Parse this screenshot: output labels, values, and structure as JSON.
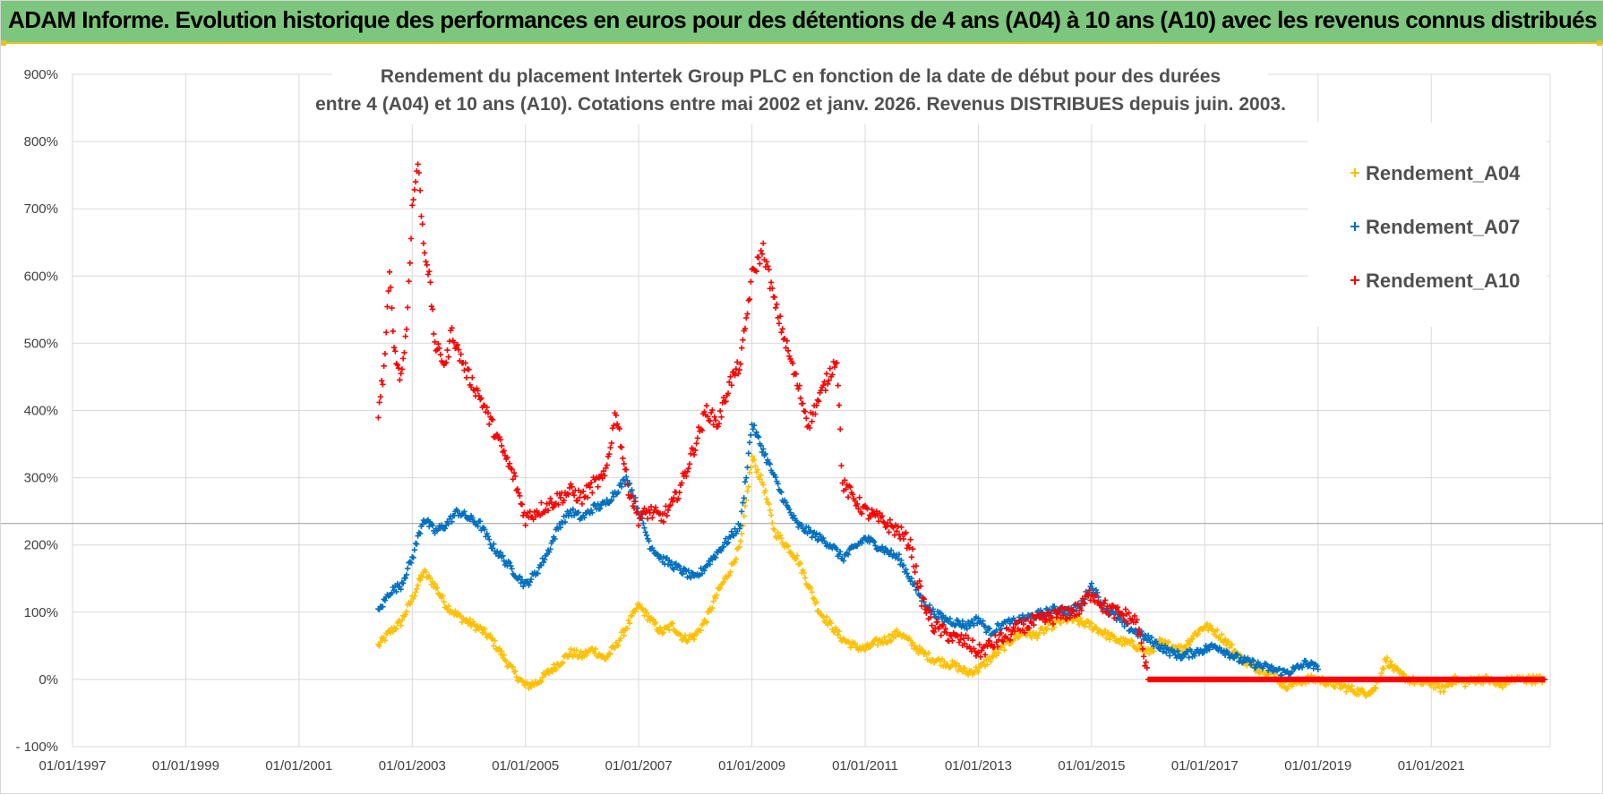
{
  "header": {
    "banner_title": "ADAM Informe. Evolution historique des performances en euros pour des détentions de 4 ans (A04) à 10 ans (A10) avec les revenus connus distribués"
  },
  "colors": {
    "banner_bg": "#7dc67d",
    "accent": "#e6c21a",
    "A04": "#ffc000",
    "A07": "#0070c0",
    "A10": "#ff0000",
    "grid": "#d9d9d9"
  },
  "chart_data": {
    "type": "scatter",
    "title_lines": [
      "Rendement du placement Intertek Group PLC en fonction de la date de début pour des durées",
      "entre 4 (A04) et 10 ans (A10).  Cotations entre mai 2002 et janv. 2026. Revenus DISTRIBUES depuis juin. 2003."
    ],
    "y_ticks": [
      "900%",
      "800%",
      "700%",
      "600%",
      "500%",
      "400%",
      "300%",
      "200%",
      "100%",
      "0%",
      "- 100%"
    ],
    "y_tick_values": [
      900,
      800,
      700,
      600,
      500,
      400,
      300,
      200,
      100,
      0,
      -100
    ],
    "x_ticks": [
      "01/01/1997",
      "01/01/1999",
      "01/01/2001",
      "01/01/2003",
      "01/01/2005",
      "01/01/2007",
      "01/01/2009",
      "01/01/2011",
      "01/01/2013",
      "01/01/2015",
      "01/01/2017",
      "01/01/2019",
      "01/01/2021"
    ],
    "x_tick_years": [
      1997,
      1999,
      2001,
      2003,
      2005,
      2007,
      2009,
      2011,
      2013,
      2015,
      2017,
      2019,
      2021
    ],
    "xlim": [
      1997,
      2023.1
    ],
    "ylim": [
      -100,
      900
    ],
    "reference_line_y": 232,
    "series": [
      {
        "name": "Rendement_A04",
        "color": "#ffc000",
        "points": [
          [
            2002.4,
            50
          ],
          [
            2002.6,
            70
          ],
          [
            2002.8,
            85
          ],
          [
            2003.0,
            120
          ],
          [
            2003.2,
            160
          ],
          [
            2003.4,
            140
          ],
          [
            2003.6,
            110
          ],
          [
            2003.8,
            95
          ],
          [
            2004.0,
            85
          ],
          [
            2004.2,
            75
          ],
          [
            2004.4,
            60
          ],
          [
            2004.6,
            35
          ],
          [
            2004.8,
            10
          ],
          [
            2005.0,
            -10
          ],
          [
            2005.2,
            -5
          ],
          [
            2005.4,
            10
          ],
          [
            2005.6,
            25
          ],
          [
            2005.8,
            40
          ],
          [
            2006.0,
            35
          ],
          [
            2006.2,
            45
          ],
          [
            2006.4,
            30
          ],
          [
            2006.6,
            50
          ],
          [
            2006.8,
            80
          ],
          [
            2007.0,
            110
          ],
          [
            2007.2,
            90
          ],
          [
            2007.4,
            70
          ],
          [
            2007.6,
            80
          ],
          [
            2007.8,
            60
          ],
          [
            2008.0,
            65
          ],
          [
            2008.2,
            90
          ],
          [
            2008.4,
            130
          ],
          [
            2008.6,
            160
          ],
          [
            2008.8,
            200
          ],
          [
            2009.0,
            330
          ],
          [
            2009.2,
            290
          ],
          [
            2009.4,
            220
          ],
          [
            2009.6,
            200
          ],
          [
            2009.8,
            180
          ],
          [
            2010.0,
            140
          ],
          [
            2010.2,
            100
          ],
          [
            2010.4,
            80
          ],
          [
            2010.6,
            60
          ],
          [
            2010.8,
            50
          ],
          [
            2011.0,
            45
          ],
          [
            2011.2,
            55
          ],
          [
            2011.4,
            60
          ],
          [
            2011.6,
            70
          ],
          [
            2011.8,
            55
          ],
          [
            2012.0,
            40
          ],
          [
            2012.2,
            30
          ],
          [
            2012.4,
            25
          ],
          [
            2012.6,
            20
          ],
          [
            2012.8,
            10
          ],
          [
            2013.0,
            15
          ],
          [
            2013.2,
            30
          ],
          [
            2013.4,
            45
          ],
          [
            2013.6,
            60
          ],
          [
            2013.8,
            70
          ],
          [
            2014.0,
            65
          ],
          [
            2014.2,
            75
          ],
          [
            2014.4,
            85
          ],
          [
            2014.6,
            90
          ],
          [
            2014.8,
            85
          ],
          [
            2015.0,
            80
          ],
          [
            2015.2,
            70
          ],
          [
            2015.4,
            60
          ],
          [
            2015.6,
            55
          ],
          [
            2015.8,
            50
          ],
          [
            2016.0,
            40
          ],
          [
            2016.2,
            55
          ],
          [
            2016.4,
            50
          ],
          [
            2016.6,
            45
          ],
          [
            2016.8,
            65
          ],
          [
            2017.0,
            80
          ],
          [
            2017.2,
            70
          ],
          [
            2017.4,
            55
          ],
          [
            2017.6,
            35
          ],
          [
            2017.8,
            20
          ],
          [
            2018.0,
            15
          ],
          [
            2018.2,
            10
          ],
          [
            2018.4,
            -10
          ],
          [
            2018.6,
            -5
          ],
          [
            2018.8,
            0
          ],
          [
            2019.0,
            0
          ],
          [
            2019.2,
            -5
          ],
          [
            2019.4,
            -10
          ],
          [
            2019.6,
            -15
          ],
          [
            2019.8,
            -20
          ],
          [
            2020.0,
            -15
          ],
          [
            2020.2,
            30
          ],
          [
            2020.4,
            10
          ],
          [
            2020.6,
            0
          ],
          [
            2020.8,
            -5
          ],
          [
            2021.0,
            -5
          ],
          [
            2021.2,
            -15
          ],
          [
            2021.4,
            0
          ],
          [
            2021.6,
            -5
          ],
          [
            2021.8,
            0
          ],
          [
            2022.0,
            0
          ],
          [
            2022.2,
            -10
          ],
          [
            2022.4,
            0
          ],
          [
            2022.6,
            0
          ],
          [
            2022.8,
            0
          ],
          [
            2023.0,
            0
          ]
        ]
      },
      {
        "name": "Rendement_A07",
        "color": "#0070c0",
        "points": [
          [
            2002.4,
            100
          ],
          [
            2002.6,
            130
          ],
          [
            2002.8,
            140
          ],
          [
            2003.0,
            180
          ],
          [
            2003.2,
            240
          ],
          [
            2003.4,
            220
          ],
          [
            2003.6,
            230
          ],
          [
            2003.8,
            250
          ],
          [
            2004.0,
            240
          ],
          [
            2004.2,
            230
          ],
          [
            2004.4,
            200
          ],
          [
            2004.6,
            180
          ],
          [
            2004.8,
            160
          ],
          [
            2005.0,
            140
          ],
          [
            2005.2,
            160
          ],
          [
            2005.4,
            190
          ],
          [
            2005.6,
            230
          ],
          [
            2005.8,
            250
          ],
          [
            2006.0,
            240
          ],
          [
            2006.2,
            255
          ],
          [
            2006.4,
            260
          ],
          [
            2006.6,
            280
          ],
          [
            2006.8,
            300
          ],
          [
            2007.0,
            250
          ],
          [
            2007.2,
            200
          ],
          [
            2007.4,
            180
          ],
          [
            2007.6,
            170
          ],
          [
            2007.8,
            160
          ],
          [
            2008.0,
            150
          ],
          [
            2008.2,
            170
          ],
          [
            2008.4,
            190
          ],
          [
            2008.6,
            210
          ],
          [
            2008.8,
            230
          ],
          [
            2009.0,
            380
          ],
          [
            2009.2,
            340
          ],
          [
            2009.4,
            300
          ],
          [
            2009.6,
            260
          ],
          [
            2009.8,
            230
          ],
          [
            2010.0,
            220
          ],
          [
            2010.2,
            210
          ],
          [
            2010.4,
            200
          ],
          [
            2010.6,
            180
          ],
          [
            2010.8,
            195
          ],
          [
            2011.0,
            210
          ],
          [
            2011.2,
            200
          ],
          [
            2011.4,
            190
          ],
          [
            2011.6,
            180
          ],
          [
            2011.8,
            150
          ],
          [
            2012.0,
            120
          ],
          [
            2012.2,
            100
          ],
          [
            2012.4,
            90
          ],
          [
            2012.6,
            85
          ],
          [
            2012.8,
            80
          ],
          [
            2013.0,
            90
          ],
          [
            2013.2,
            70
          ],
          [
            2013.4,
            80
          ],
          [
            2013.6,
            85
          ],
          [
            2013.8,
            90
          ],
          [
            2014.0,
            95
          ],
          [
            2014.2,
            100
          ],
          [
            2014.4,
            105
          ],
          [
            2014.6,
            100
          ],
          [
            2014.8,
            110
          ],
          [
            2015.0,
            140
          ],
          [
            2015.2,
            110
          ],
          [
            2015.4,
            95
          ],
          [
            2015.6,
            80
          ],
          [
            2015.8,
            70
          ],
          [
            2016.0,
            60
          ],
          [
            2016.2,
            50
          ],
          [
            2016.4,
            40
          ],
          [
            2016.6,
            35
          ],
          [
            2016.8,
            40
          ],
          [
            2017.0,
            45
          ],
          [
            2017.2,
            50
          ],
          [
            2017.4,
            40
          ],
          [
            2017.6,
            30
          ],
          [
            2017.8,
            25
          ],
          [
            2018.0,
            20
          ],
          [
            2018.2,
            15
          ],
          [
            2018.4,
            10
          ],
          [
            2018.6,
            15
          ],
          [
            2018.8,
            25
          ],
          [
            2019.0,
            15
          ]
        ]
      },
      {
        "name": "Rendement_A10",
        "color": "#ff0000",
        "points": [
          [
            2002.4,
            400
          ],
          [
            2002.5,
            460
          ],
          [
            2002.6,
            600
          ],
          [
            2002.7,
            480
          ],
          [
            2002.8,
            450
          ],
          [
            2002.9,
            520
          ],
          [
            2003.0,
            700
          ],
          [
            2003.1,
            770
          ],
          [
            2003.2,
            650
          ],
          [
            2003.3,
            600
          ],
          [
            2003.4,
            500
          ],
          [
            2003.5,
            480
          ],
          [
            2003.6,
            470
          ],
          [
            2003.7,
            520
          ],
          [
            2003.8,
            490
          ],
          [
            2003.9,
            470
          ],
          [
            2004.0,
            450
          ],
          [
            2004.2,
            420
          ],
          [
            2004.4,
            380
          ],
          [
            2004.6,
            340
          ],
          [
            2004.8,
            300
          ],
          [
            2005.0,
            240
          ],
          [
            2005.2,
            250
          ],
          [
            2005.4,
            260
          ],
          [
            2005.6,
            270
          ],
          [
            2005.8,
            280
          ],
          [
            2006.0,
            270
          ],
          [
            2006.2,
            290
          ],
          [
            2006.4,
            300
          ],
          [
            2006.6,
            400
          ],
          [
            2006.8,
            290
          ],
          [
            2007.0,
            240
          ],
          [
            2007.2,
            250
          ],
          [
            2007.4,
            240
          ],
          [
            2007.6,
            260
          ],
          [
            2007.8,
            300
          ],
          [
            2008.0,
            350
          ],
          [
            2008.2,
            400
          ],
          [
            2008.4,
            380
          ],
          [
            2008.6,
            440
          ],
          [
            2008.8,
            470
          ],
          [
            2009.0,
            600
          ],
          [
            2009.2,
            640
          ],
          [
            2009.4,
            560
          ],
          [
            2009.6,
            500
          ],
          [
            2009.8,
            440
          ],
          [
            2010.0,
            380
          ],
          [
            2010.2,
            420
          ],
          [
            2010.4,
            460
          ],
          [
            2010.5,
            480
          ],
          [
            2010.6,
            290
          ],
          [
            2010.8,
            270
          ],
          [
            2011.0,
            250
          ],
          [
            2011.2,
            240
          ],
          [
            2011.4,
            230
          ],
          [
            2011.6,
            220
          ],
          [
            2011.8,
            200
          ],
          [
            2012.0,
            120
          ],
          [
            2012.2,
            80
          ],
          [
            2012.4,
            70
          ],
          [
            2012.6,
            60
          ],
          [
            2012.8,
            55
          ],
          [
            2013.0,
            40
          ],
          [
            2013.2,
            50
          ],
          [
            2013.4,
            60
          ],
          [
            2013.6,
            70
          ],
          [
            2013.8,
            80
          ],
          [
            2014.0,
            85
          ],
          [
            2014.2,
            90
          ],
          [
            2014.4,
            95
          ],
          [
            2014.6,
            100
          ],
          [
            2014.8,
            105
          ],
          [
            2015.0,
            130
          ],
          [
            2015.2,
            110
          ],
          [
            2015.4,
            100
          ],
          [
            2015.6,
            95
          ],
          [
            2015.8,
            85
          ],
          [
            2016.0,
            0
          ],
          [
            2017.0,
            0
          ],
          [
            2018.0,
            0
          ],
          [
            2019.0,
            0
          ],
          [
            2020.0,
            0
          ],
          [
            2021.0,
            0
          ],
          [
            2022.0,
            0
          ],
          [
            2023.0,
            0
          ]
        ]
      }
    ],
    "legend": [
      "Rendement_A04",
      "Rendement_A07",
      "Rendement_A10"
    ],
    "legend_position": "top-right"
  }
}
